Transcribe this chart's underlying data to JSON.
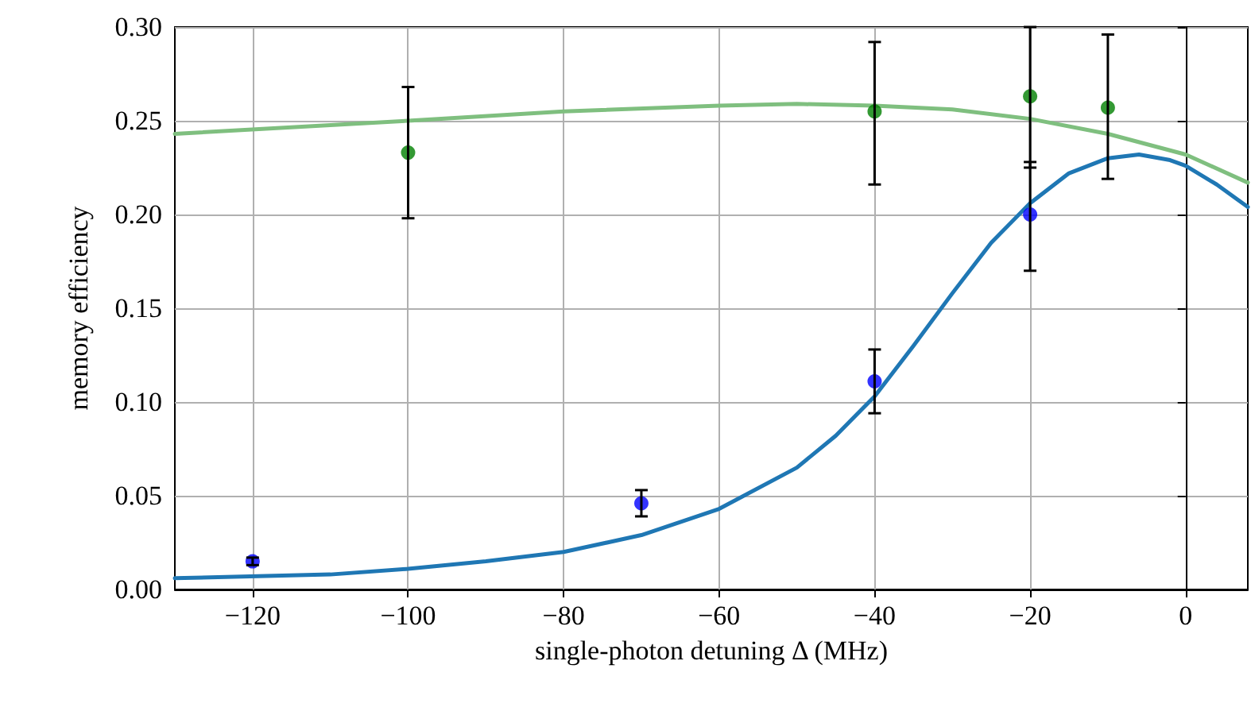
{
  "chart_data": {
    "type": "scatter",
    "xlabel": "single-photon detuning Δ (MHz)",
    "ylabel": "memory efficiency",
    "xlim": [
      -130,
      8
    ],
    "ylim": [
      0,
      0.3
    ],
    "xticks": [
      {
        "value": -120,
        "label": "−120"
      },
      {
        "value": -100,
        "label": "−100"
      },
      {
        "value": -80,
        "label": "−80"
      },
      {
        "value": -60,
        "label": "−60"
      },
      {
        "value": -40,
        "label": "−40"
      },
      {
        "value": -20,
        "label": "−20"
      },
      0
    ],
    "yticks": [
      {
        "value": 0,
        "label": "0.00"
      },
      {
        "value": 0.05,
        "label": "0.05"
      },
      {
        "value": 0.1,
        "label": "0.10"
      },
      {
        "value": 0.15,
        "label": "0.15"
      },
      {
        "value": 0.2,
        "label": "0.20"
      },
      {
        "value": 0.25,
        "label": "0.25"
      },
      {
        "value": 0.3,
        "label": "0.30"
      }
    ],
    "grid": true,
    "series": [
      {
        "type": "line",
        "marker": "none",
        "color": "#7fbf7f",
        "x": [
          -130,
          -100,
          -80,
          -60,
          -50,
          -40,
          -30,
          -20,
          -10,
          0,
          8
        ],
        "values": [
          0.243,
          0.25,
          0.255,
          0.258,
          0.259,
          0.258,
          0.256,
          0.251,
          0.243,
          0.232,
          0.217
        ]
      },
      {
        "type": "line",
        "marker": "none",
        "color": "#1f77b4",
        "x": [
          -130,
          -110,
          -100,
          -90,
          -80,
          -70,
          -60,
          -50,
          -45,
          -40,
          -35,
          -30,
          -25,
          -20,
          -15,
          -10,
          -6,
          -2,
          0,
          4,
          8
        ],
        "values": [
          0.006,
          0.008,
          0.011,
          0.015,
          0.02,
          0.029,
          0.043,
          0.065,
          0.082,
          0.103,
          0.13,
          0.158,
          0.185,
          0.206,
          0.222,
          0.23,
          0.232,
          0.229,
          0.226,
          0.216,
          0.204
        ]
      },
      {
        "marker": "circle",
        "color": "#0000ff",
        "x": [
          -120,
          -70,
          -40,
          -20
        ],
        "values": [
          0.015,
          0.046,
          0.111,
          0.2
        ],
        "errors": [
          [
            0.013,
            0.017
          ],
          [
            0.039,
            0.053
          ],
          [
            0.094,
            0.128
          ],
          [
            0.17,
            0.228
          ]
        ]
      },
      {
        "marker": "circle",
        "color": "#008000",
        "x": [
          -100,
          -40,
          -20,
          -10
        ],
        "values": [
          0.233,
          0.255,
          0.263,
          0.257
        ],
        "errors": [
          [
            0.198,
            0.268
          ],
          [
            0.216,
            0.292
          ],
          [
            0.225,
            0.3
          ],
          [
            0.219,
            0.296
          ]
        ]
      }
    ]
  }
}
